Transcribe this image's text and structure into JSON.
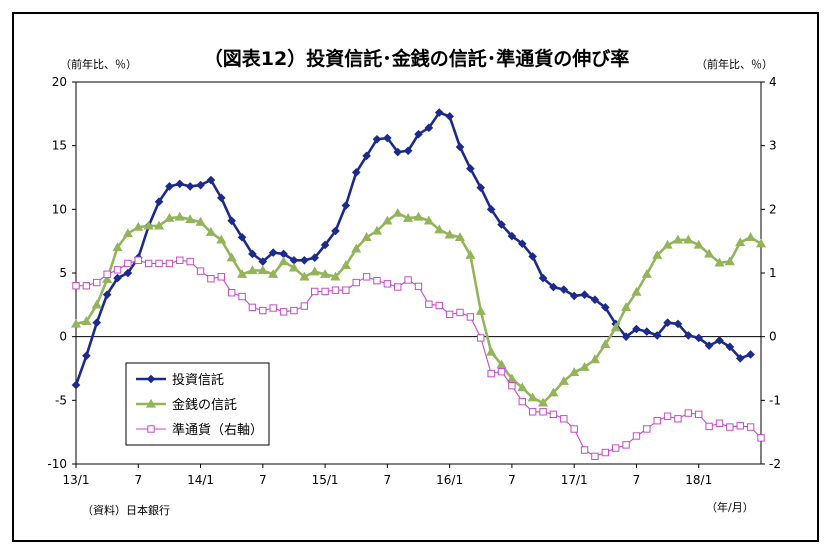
{
  "chart_data": {
    "type": "line",
    "title": "（図表12）投資信託･金銭の信託･準通貨の伸び率",
    "ylabel_left": "（前年比、％）",
    "ylabel_right": "（前年比、％）",
    "xunit": "（年/月）",
    "source": "（資料）日本銀行",
    "ylim_left": [
      -10,
      20
    ],
    "ylim_right": [
      -2,
      4
    ],
    "yticks_left": [
      "20",
      "15",
      "10",
      "5",
      "0",
      "-5",
      "-10"
    ],
    "yticks_right": [
      "4",
      "3",
      "2",
      "1",
      "0",
      "-1",
      "-2"
    ],
    "x_tick_labels": [
      {
        "month_index": 0,
        "label": "13/1"
      },
      {
        "month_index": 6,
        "label": "7"
      },
      {
        "month_index": 12,
        "label": "14/1"
      },
      {
        "month_index": 18,
        "label": "7"
      },
      {
        "month_index": 24,
        "label": "15/1"
      },
      {
        "month_index": 30,
        "label": "7"
      },
      {
        "month_index": 36,
        "label": "16/1"
      },
      {
        "month_index": 42,
        "label": "7"
      },
      {
        "month_index": 48,
        "label": "17/1"
      },
      {
        "month_index": 54,
        "label": "7"
      },
      {
        "month_index": 60,
        "label": "18/1"
      }
    ],
    "legend_placement": "bottom-left",
    "series": [
      {
        "name": "投資信託",
        "axis": "left",
        "color": "#1b2a8c",
        "marker": "diamond",
        "values": [
          -3.8,
          -1.5,
          1.1,
          3.3,
          4.6,
          5.0,
          6.2,
          8.7,
          10.6,
          11.8,
          12.0,
          11.8,
          11.9,
          12.3,
          10.9,
          9.1,
          7.8,
          6.5,
          5.9,
          6.6,
          6.5,
          6.0,
          6.0,
          6.2,
          7.2,
          8.3,
          10.3,
          12.9,
          14.2,
          15.5,
          15.6,
          14.5,
          14.6,
          15.9,
          16.4,
          17.6,
          17.3,
          14.9,
          13.2,
          11.7,
          10.0,
          8.8,
          7.9,
          7.3,
          6.3,
          4.6,
          3.9,
          3.7,
          3.2,
          3.3,
          2.9,
          2.3,
          1.0,
          0.0,
          0.6,
          0.4,
          0.1,
          1.1,
          1.0,
          0.1,
          -0.1,
          -0.7,
          -0.3,
          -0.8,
          -1.7,
          -1.4
        ]
      },
      {
        "name": "金銭の信託",
        "axis": "left",
        "color": "#92b55a",
        "marker": "triangle",
        "values": [
          1.0,
          1.2,
          2.5,
          4.5,
          7.0,
          8.1,
          8.6,
          8.7,
          8.7,
          9.3,
          9.4,
          9.2,
          9.0,
          8.2,
          7.6,
          6.2,
          4.9,
          5.2,
          5.2,
          4.9,
          5.9,
          5.4,
          4.7,
          5.1,
          4.9,
          4.7,
          5.6,
          6.9,
          7.8,
          8.3,
          9.1,
          9.7,
          9.3,
          9.4,
          9.1,
          8.4,
          8.0,
          7.8,
          6.4,
          2.0,
          -1.2,
          -2.2,
          -3.3,
          -4.0,
          -4.8,
          -5.2,
          -4.4,
          -3.5,
          -2.8,
          -2.4,
          -1.8,
          -0.6,
          0.7,
          2.3,
          3.5,
          4.9,
          6.4,
          7.2,
          7.6,
          7.6,
          7.2,
          6.5,
          5.8,
          5.9,
          7.4,
          7.8,
          7.3
        ]
      },
      {
        "name": "準通貨（右軸）",
        "axis": "right",
        "color": "#c64bc8",
        "marker": "square",
        "values": [
          0.8,
          0.8,
          0.85,
          0.98,
          1.05,
          1.15,
          1.2,
          1.15,
          1.15,
          1.15,
          1.2,
          1.18,
          1.03,
          0.91,
          0.94,
          0.69,
          0.63,
          0.46,
          0.41,
          0.45,
          0.39,
          0.41,
          0.48,
          0.71,
          0.71,
          0.73,
          0.73,
          0.85,
          0.94,
          0.88,
          0.83,
          0.78,
          0.89,
          0.79,
          0.51,
          0.49,
          0.35,
          0.38,
          0.31,
          -0.02,
          -0.58,
          -0.55,
          -0.77,
          -1.02,
          -1.18,
          -1.18,
          -1.22,
          -1.29,
          -1.45,
          -1.78,
          -1.88,
          -1.82,
          -1.75,
          -1.7,
          -1.56,
          -1.45,
          -1.32,
          -1.25,
          -1.29,
          -1.2,
          -1.22,
          -1.41,
          -1.36,
          -1.42,
          -1.4,
          -1.42,
          -1.59
        ]
      }
    ]
  }
}
